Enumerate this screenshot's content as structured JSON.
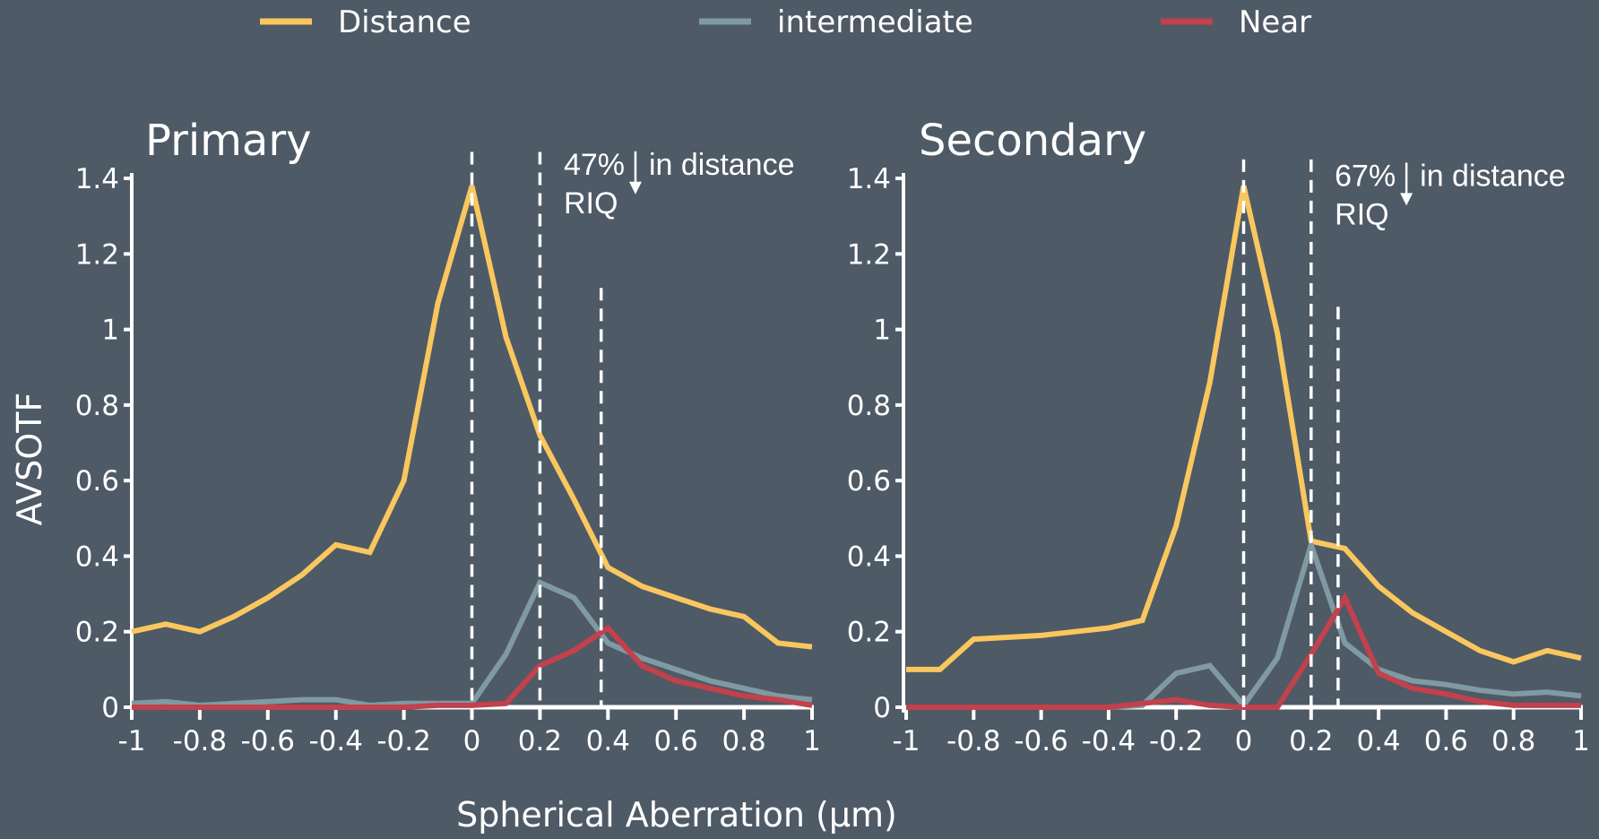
{
  "legend": [
    {
      "name": "Distance",
      "color": "#f9c75e"
    },
    {
      "name": "intermediate",
      "color": "#7f9aa3"
    },
    {
      "name": "Near",
      "color": "#c1414c"
    }
  ],
  "shared_xlabel": "Spherical Aberration (μm)",
  "shared_ylabel": "AVSOTF",
  "chart_data": [
    {
      "type": "line",
      "title": "Primary",
      "xlabel": "Spherical Aberration (μm)",
      "ylabel": "AVSOTF",
      "xlim": [
        -1,
        1
      ],
      "ylim": [
        0,
        1.4
      ],
      "x_ticks": [
        -1,
        -0.8,
        -0.6,
        -0.4,
        -0.2,
        0,
        0.2,
        0.4,
        0.6,
        0.8,
        1
      ],
      "x_tick_labels": [
        "-1",
        "-0.8",
        "-0.6",
        "-0.4",
        "-0.2",
        "0",
        "0.2",
        "0.4",
        "0.6",
        "0.8",
        "1"
      ],
      "y_ticks": [
        0,
        0.2,
        0.4,
        0.6,
        0.8,
        1,
        1.2,
        1.4
      ],
      "y_tick_labels": [
        "0",
        "0.2",
        "0.4",
        "0.6",
        "0.8",
        "1",
        "1.2",
        "1.4"
      ],
      "x": [
        -1,
        -0.9,
        -0.8,
        -0.7,
        -0.6,
        -0.5,
        -0.4,
        -0.3,
        -0.2,
        -0.1,
        0,
        0.1,
        0.2,
        0.3,
        0.4,
        0.5,
        0.6,
        0.7,
        0.8,
        0.9,
        1
      ],
      "series": [
        {
          "name": "Distance",
          "color": "#f9c75e",
          "values": [
            0.2,
            0.22,
            0.2,
            0.24,
            0.29,
            0.35,
            0.43,
            0.41,
            0.6,
            1.07,
            1.38,
            0.98,
            0.72,
            0.55,
            0.37,
            0.32,
            0.29,
            0.26,
            0.24,
            0.17,
            0.16
          ]
        },
        {
          "name": "intermediate",
          "color": "#7f9aa3",
          "values": [
            0.01,
            0.015,
            0.005,
            0.01,
            0.015,
            0.02,
            0.02,
            0.005,
            0.01,
            0.01,
            0.01,
            0.14,
            0.33,
            0.29,
            0.17,
            0.13,
            0.1,
            0.07,
            0.05,
            0.03,
            0.02
          ]
        },
        {
          "name": "Near",
          "color": "#c1414c",
          "values": [
            0,
            0,
            0,
            0,
            0,
            0,
            0,
            0,
            0,
            0.005,
            0.005,
            0.01,
            0.11,
            0.15,
            0.21,
            0.11,
            0.07,
            0.05,
            0.03,
            0.02,
            0.005
          ]
        }
      ],
      "vlines": [
        {
          "x": 0,
          "top": 1.47
        },
        {
          "x": 0.2,
          "top": 1.47
        },
        {
          "x": 0.38,
          "top": 1.11
        }
      ],
      "annotation": {
        "line1_pre": "47%",
        "line1_post": "in distance",
        "line2": "RIQ",
        "x": 0.27,
        "y": 1.41
      }
    },
    {
      "type": "line",
      "title": "Secondary",
      "xlabel": "Spherical Aberration (μm)",
      "ylabel": "AVSOTF",
      "xlim": [
        -1,
        1
      ],
      "ylim": [
        0,
        1.4
      ],
      "x_ticks": [
        -1,
        -0.8,
        -0.6,
        -0.4,
        -0.2,
        0,
        0.2,
        0.4,
        0.6,
        0.8,
        1
      ],
      "x_tick_labels": [
        "-1",
        "-0.8",
        "-0.6",
        "-0.4",
        "-0.2",
        "0",
        "0.2",
        "0.4",
        "0.6",
        "0.8",
        "1"
      ],
      "y_ticks": [
        0,
        0.2,
        0.4,
        0.6,
        0.8,
        1,
        1.2,
        1.4
      ],
      "y_tick_labels": [
        "0",
        "0.2",
        "0.4",
        "0.6",
        "0.8",
        "1",
        "1.2",
        "1.4"
      ],
      "x": [
        -1,
        -0.9,
        -0.8,
        -0.7,
        -0.6,
        -0.5,
        -0.4,
        -0.3,
        -0.2,
        -0.1,
        0,
        0.1,
        0.2,
        0.3,
        0.4,
        0.5,
        0.6,
        0.7,
        0.8,
        0.9,
        1
      ],
      "series": [
        {
          "name": "Distance",
          "color": "#f9c75e",
          "values": [
            0.1,
            0.1,
            0.18,
            0.185,
            0.19,
            0.2,
            0.21,
            0.23,
            0.48,
            0.86,
            1.38,
            0.99,
            0.44,
            0.42,
            0.32,
            0.25,
            0.2,
            0.15,
            0.12,
            0.15,
            0.13
          ]
        },
        {
          "name": "intermediate",
          "color": "#7f9aa3",
          "values": [
            0,
            0,
            0,
            0,
            0,
            0,
            0,
            0.005,
            0.09,
            0.11,
            0.005,
            0.13,
            0.43,
            0.17,
            0.1,
            0.07,
            0.06,
            0.045,
            0.035,
            0.04,
            0.03
          ]
        },
        {
          "name": "Near",
          "color": "#c1414c",
          "values": [
            0,
            0,
            0,
            0,
            0,
            0,
            0,
            0.01,
            0.02,
            0.005,
            0,
            0,
            0.14,
            0.29,
            0.09,
            0.05,
            0.035,
            0.015,
            0.005,
            0.005,
            0.005
          ]
        }
      ],
      "vlines": [
        {
          "x": 0,
          "top": 1.45
        },
        {
          "x": 0.2,
          "top": 1.45
        },
        {
          "x": 0.28,
          "top": 1.06
        }
      ],
      "annotation": {
        "line1_pre": "67%",
        "line1_post": "in distance",
        "line2": "RIQ",
        "x": 0.27,
        "y": 1.38
      }
    }
  ]
}
